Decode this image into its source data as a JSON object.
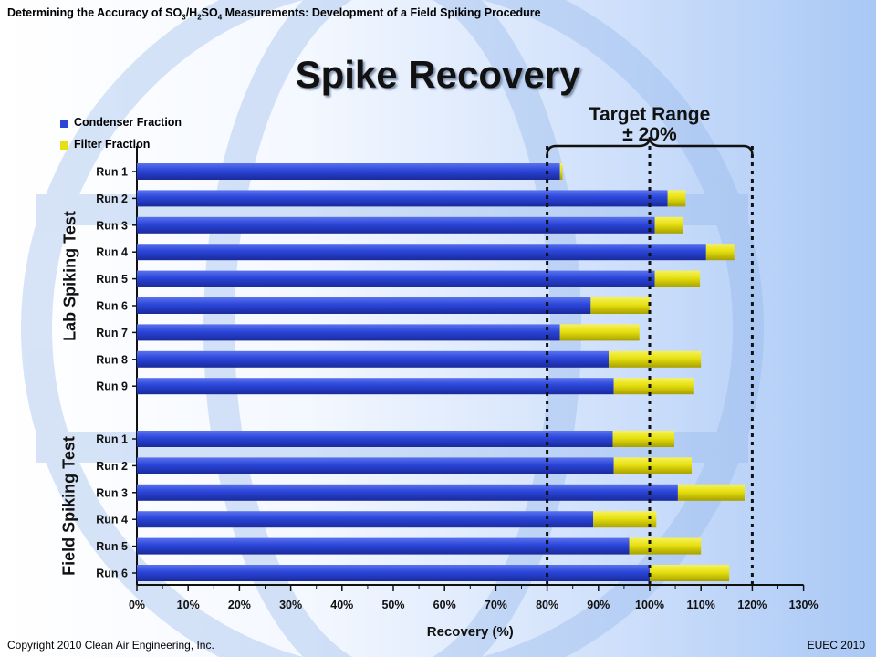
{
  "header": {
    "title_pre": "Determining the Accuracy of SO",
    "title_sub1": "3",
    "title_mid": "/H",
    "title_sub2": "2",
    "title_mid2": "SO",
    "title_sub3": "4",
    "title_post": " Measurements: Development of a Field Spiking Procedure"
  },
  "slide_title": "Spike Recovery",
  "footer": {
    "left": "Copyright 2010 Clean Air Engineering, Inc.",
    "right": "EUEC 2010"
  },
  "target_range": {
    "line1": "Target Range",
    "line2": "± 20%"
  },
  "colors": {
    "condenser": "#2a45d8",
    "filter": "#e6e010",
    "target_line": "#111111"
  },
  "chart_data": {
    "type": "bar",
    "orientation": "horizontal",
    "stacked": true,
    "xlabel": "Recovery (%)",
    "xlim": [
      0,
      130
    ],
    "x_ticks": [
      "0%",
      "10%",
      "20%",
      "30%",
      "40%",
      "50%",
      "60%",
      "70%",
      "80%",
      "90%",
      "100%",
      "110%",
      "120%",
      "130%"
    ],
    "reference_lines": [
      80,
      100,
      120
    ],
    "legend": [
      "Condenser Fraction",
      "Filter Fraction"
    ],
    "groups": [
      {
        "name": "Lab Spiking Test",
        "categories": [
          "Run 1",
          "Run 2",
          "Run 3",
          "Run 4",
          "Run 5",
          "Run 6",
          "Run 7",
          "Run 8",
          "Run 9"
        ],
        "series": [
          {
            "name": "Condenser Fraction",
            "values": [
              82.5,
              103.5,
              101,
              111,
              101,
              88.5,
              82.5,
              92,
              93
            ]
          },
          {
            "name": "Filter Fraction",
            "values": [
              0.5,
              3.5,
              5.5,
              5.5,
              8.8,
              11.5,
              15.5,
              18,
              15.5
            ]
          }
        ]
      },
      {
        "name": "Field Spiking Test",
        "categories": [
          "Run 1",
          "Run 2",
          "Run 3",
          "Run 4",
          "Run 5",
          "Run 6"
        ],
        "series": [
          {
            "name": "Condenser Fraction",
            "values": [
              92.8,
              93,
              105.5,
              89,
              96,
              100
            ]
          },
          {
            "name": "Filter Fraction",
            "values": [
              12,
              15.2,
              13,
              12.3,
              14,
              15.5
            ]
          }
        ]
      }
    ]
  }
}
